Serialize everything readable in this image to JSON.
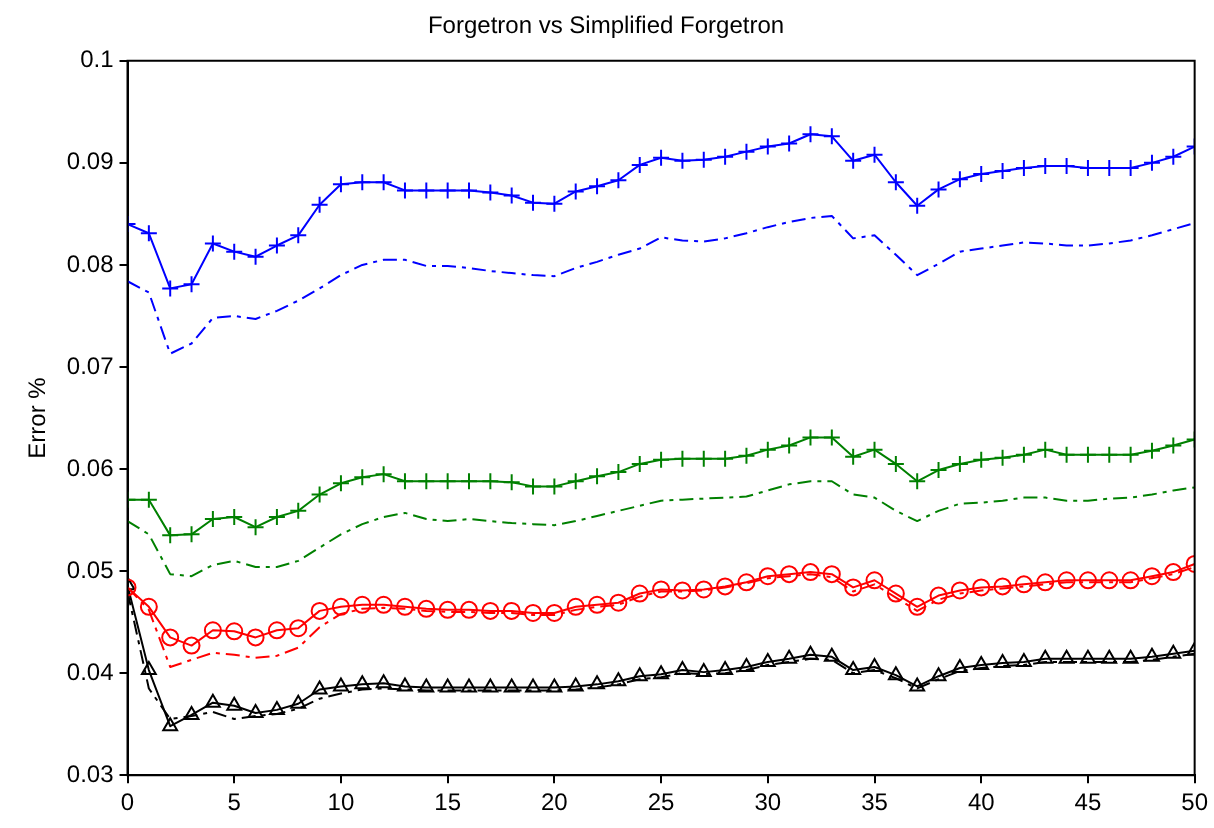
{
  "chart_data": {
    "type": "line",
    "title": "Forgetron vs Simplified Forgetron",
    "ylabel": "Error %",
    "x": [
      0,
      1,
      2,
      3,
      4,
      5,
      6,
      7,
      8,
      9,
      10,
      11,
      12,
      13,
      14,
      15,
      16,
      17,
      18,
      19,
      20,
      21,
      22,
      23,
      24,
      25,
      26,
      27,
      28,
      29,
      30,
      31,
      32,
      33,
      34,
      35,
      36,
      37,
      38,
      39,
      40,
      41,
      42,
      43,
      44,
      45,
      46,
      47,
      48,
      49,
      50
    ],
    "xlim": [
      0,
      50
    ],
    "xticks": [
      0,
      5,
      10,
      15,
      20,
      25,
      30,
      35,
      40,
      45,
      50
    ],
    "ylim": [
      0.03,
      0.1
    ],
    "yticks": [
      0.03,
      0.04,
      0.05,
      0.06,
      0.07,
      0.08,
      0.09,
      0.1
    ],
    "grid": false,
    "legend": false,
    "series": [
      {
        "color": "#0000ff",
        "marker": "cross",
        "line_style": "solid",
        "values": [
          0.084,
          0.0831,
          0.0777,
          0.0781,
          0.0821,
          0.0813,
          0.0808,
          0.0819,
          0.0829,
          0.0859,
          0.0879,
          0.0881,
          0.0881,
          0.0873,
          0.0873,
          0.0873,
          0.0873,
          0.0871,
          0.0868,
          0.0861,
          0.086,
          0.0872,
          0.0877,
          0.0883,
          0.0898,
          0.0905,
          0.0902,
          0.0903,
          0.0906,
          0.0911,
          0.0916,
          0.0919,
          0.0928,
          0.0926,
          0.0902,
          0.0908,
          0.0881,
          0.0858,
          0.0874,
          0.0884,
          0.0889,
          0.0892,
          0.0895,
          0.0897,
          0.0897,
          0.0895,
          0.0895,
          0.0895,
          0.09,
          0.0906,
          0.0916
        ]
      },
      {
        "color": "#0000ff",
        "marker": "none",
        "line_style": "dashed",
        "values": [
          0.0784,
          0.0773,
          0.0713,
          0.0723,
          0.0748,
          0.075,
          0.0747,
          0.0755,
          0.0765,
          0.0777,
          0.079,
          0.08,
          0.0805,
          0.0805,
          0.0799,
          0.0799,
          0.0797,
          0.0794,
          0.0792,
          0.079,
          0.0789,
          0.0797,
          0.0803,
          0.081,
          0.0816,
          0.0827,
          0.0824,
          0.0823,
          0.0826,
          0.0831,
          0.0837,
          0.0842,
          0.0846,
          0.0848,
          0.0826,
          0.0829,
          0.081,
          0.079,
          0.0801,
          0.0813,
          0.0816,
          0.0819,
          0.0822,
          0.0821,
          0.0819,
          0.0819,
          0.0821,
          0.0824,
          0.0829,
          0.0835,
          0.0841
        ]
      },
      {
        "color": "#008000",
        "marker": "cross",
        "line_style": "solid",
        "values": [
          0.057,
          0.057,
          0.0535,
          0.0536,
          0.0551,
          0.0553,
          0.0543,
          0.0553,
          0.0559,
          0.0575,
          0.0586,
          0.0592,
          0.0595,
          0.0588,
          0.0588,
          0.0588,
          0.0588,
          0.0588,
          0.0587,
          0.0583,
          0.0583,
          0.0588,
          0.0593,
          0.0597,
          0.0605,
          0.0609,
          0.061,
          0.061,
          0.061,
          0.0613,
          0.0619,
          0.0623,
          0.0631,
          0.0631,
          0.0612,
          0.0619,
          0.0605,
          0.0588,
          0.0599,
          0.0605,
          0.0609,
          0.0611,
          0.0614,
          0.0619,
          0.0614,
          0.0614,
          0.0614,
          0.0614,
          0.0618,
          0.0623,
          0.0629
        ]
      },
      {
        "color": "#008000",
        "marker": "none",
        "line_style": "dashed",
        "values": [
          0.0549,
          0.0536,
          0.0497,
          0.0495,
          0.0506,
          0.051,
          0.0504,
          0.0504,
          0.051,
          0.0523,
          0.0536,
          0.0546,
          0.0553,
          0.0557,
          0.0551,
          0.0549,
          0.0551,
          0.0549,
          0.0547,
          0.0546,
          0.0545,
          0.0549,
          0.0554,
          0.0559,
          0.0564,
          0.0569,
          0.057,
          0.0571,
          0.0572,
          0.0573,
          0.0579,
          0.0585,
          0.0588,
          0.0588,
          0.0575,
          0.0572,
          0.0559,
          0.0549,
          0.0559,
          0.0566,
          0.0567,
          0.0569,
          0.0572,
          0.0572,
          0.0569,
          0.0569,
          0.0571,
          0.0572,
          0.0575,
          0.0579,
          0.0582
        ]
      },
      {
        "color": "#ff0000",
        "marker": "circle",
        "line_style": "solid",
        "values": [
          0.0484,
          0.0465,
          0.0435,
          0.0427,
          0.0442,
          0.0441,
          0.0435,
          0.0442,
          0.0444,
          0.0461,
          0.0465,
          0.0467,
          0.0467,
          0.0465,
          0.0463,
          0.0462,
          0.0462,
          0.0461,
          0.0461,
          0.0459,
          0.0459,
          0.0465,
          0.0467,
          0.0469,
          0.0478,
          0.0482,
          0.0481,
          0.0482,
          0.0485,
          0.0489,
          0.0495,
          0.0497,
          0.0499,
          0.0497,
          0.0484,
          0.0491,
          0.0478,
          0.0465,
          0.0476,
          0.0481,
          0.0484,
          0.0485,
          0.0487,
          0.0489,
          0.0491,
          0.0491,
          0.0491,
          0.0491,
          0.0495,
          0.0499,
          0.0507
        ]
      },
      {
        "color": "#ff0000",
        "marker": "none",
        "line_style": "dashed",
        "values": [
          0.0484,
          0.0462,
          0.0406,
          0.0413,
          0.042,
          0.0418,
          0.0415,
          0.0417,
          0.0425,
          0.0445,
          0.0458,
          0.0463,
          0.0464,
          0.0463,
          0.0461,
          0.046,
          0.046,
          0.0459,
          0.0459,
          0.0457,
          0.0457,
          0.0462,
          0.0465,
          0.0467,
          0.0475,
          0.048,
          0.048,
          0.0481,
          0.0484,
          0.0488,
          0.0493,
          0.0495,
          0.0497,
          0.0494,
          0.048,
          0.0487,
          0.0474,
          0.0461,
          0.0472,
          0.0478,
          0.0481,
          0.0483,
          0.0485,
          0.0487,
          0.0489,
          0.0489,
          0.0489,
          0.0489,
          0.0493,
          0.0497,
          0.0504
        ]
      },
      {
        "color": "#000000",
        "marker": "triangle",
        "line_style": "solid",
        "values": [
          0.0486,
          0.0403,
          0.0348,
          0.0359,
          0.0371,
          0.0368,
          0.0361,
          0.0364,
          0.037,
          0.0384,
          0.0387,
          0.0389,
          0.039,
          0.0387,
          0.0386,
          0.0386,
          0.0386,
          0.0386,
          0.0386,
          0.0386,
          0.0386,
          0.0387,
          0.0389,
          0.0392,
          0.0397,
          0.0399,
          0.0403,
          0.0401,
          0.0403,
          0.0406,
          0.0411,
          0.0414,
          0.0418,
          0.0416,
          0.0403,
          0.0406,
          0.0398,
          0.0387,
          0.0397,
          0.0405,
          0.0408,
          0.041,
          0.0411,
          0.0414,
          0.0414,
          0.0414,
          0.0414,
          0.0414,
          0.0416,
          0.0419,
          0.0422
        ]
      },
      {
        "color": "#000000",
        "marker": "none",
        "line_style": "dashed",
        "values": [
          0.048,
          0.0385,
          0.0355,
          0.0358,
          0.0362,
          0.0355,
          0.0358,
          0.036,
          0.0365,
          0.0375,
          0.038,
          0.0384,
          0.0385,
          0.0384,
          0.0383,
          0.0383,
          0.0383,
          0.0383,
          0.0383,
          0.0383,
          0.0383,
          0.0384,
          0.0386,
          0.0389,
          0.0394,
          0.0396,
          0.04,
          0.0399,
          0.04,
          0.0403,
          0.0408,
          0.0411,
          0.0414,
          0.0413,
          0.04,
          0.0403,
          0.0395,
          0.0385,
          0.0394,
          0.0402,
          0.0405,
          0.0407,
          0.0408,
          0.0411,
          0.0411,
          0.0411,
          0.0411,
          0.0411,
          0.0413,
          0.0416,
          0.0419
        ]
      }
    ]
  }
}
